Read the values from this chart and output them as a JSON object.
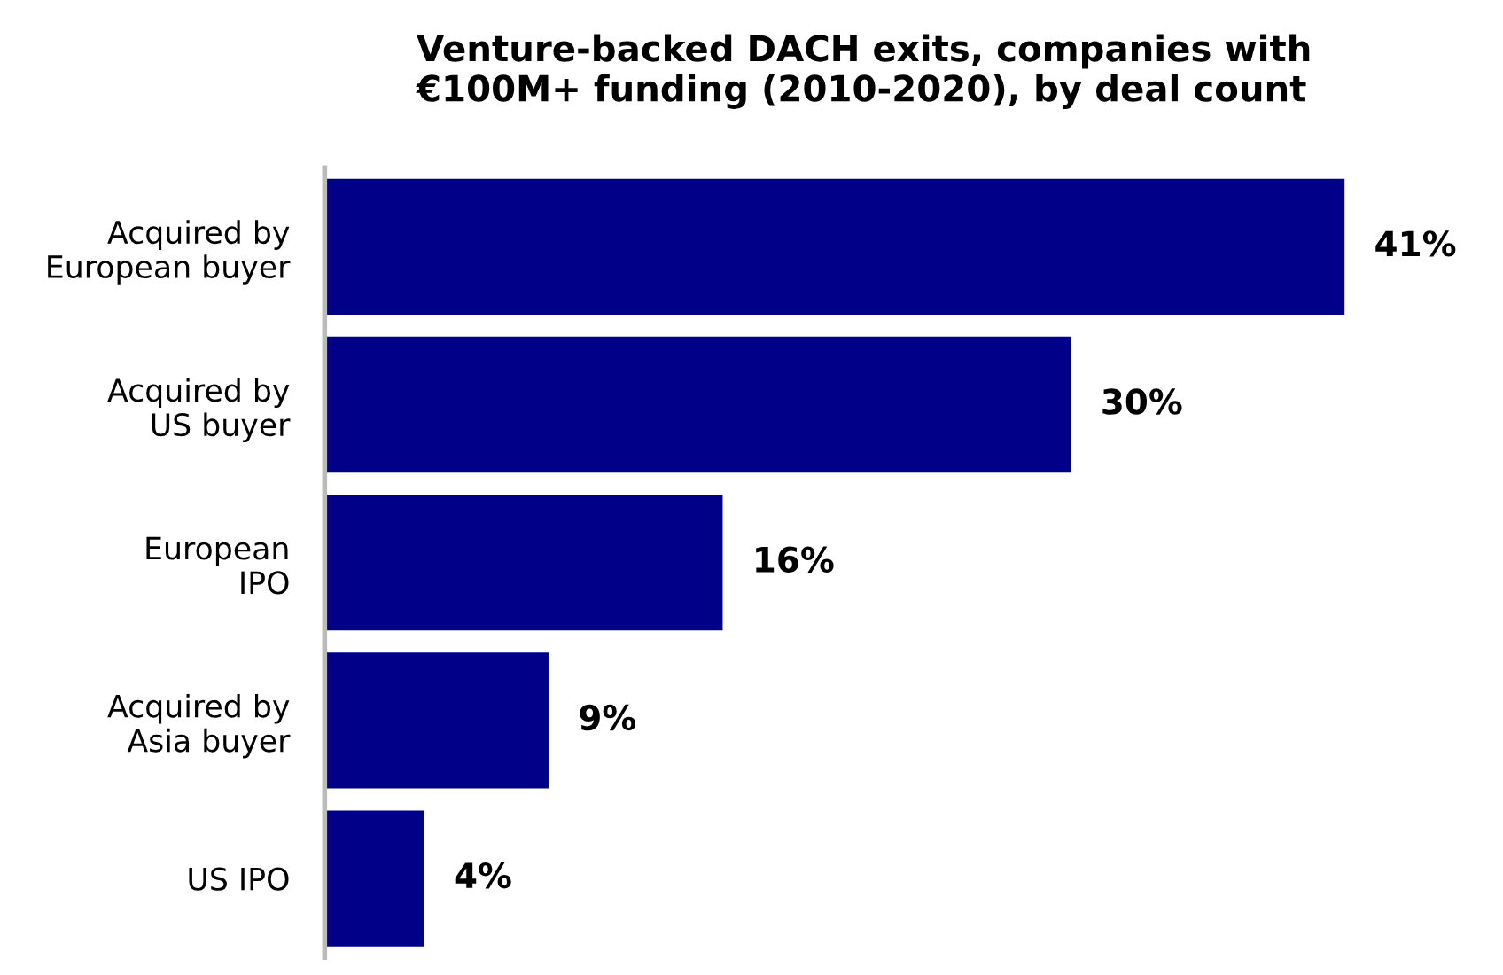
{
  "chart_data": {
    "type": "bar",
    "orientation": "horizontal",
    "title": "Venture-backed DACH exits, companies with\n€100M+ funding (2010-2020), by deal count",
    "categories": [
      "Acquired by\nEuropean buyer",
      "Acquired by\nUS buyer",
      "European\nIPO",
      "Acquired by\nAsia buyer",
      "US IPO"
    ],
    "values": [
      41,
      30,
      16,
      9,
      4
    ],
    "value_labels": [
      "41%",
      "30%",
      "16%",
      "9%",
      "4%"
    ],
    "color": "#000088",
    "grid": false,
    "legend": false
  }
}
